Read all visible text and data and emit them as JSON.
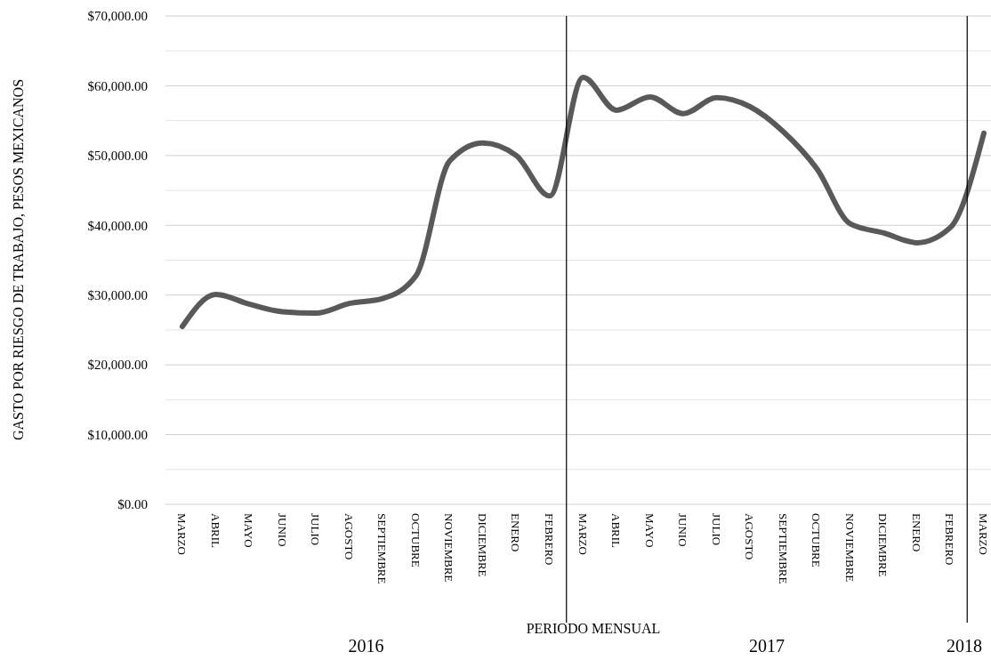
{
  "chart_data": {
    "type": "line",
    "xlabel": "PERIODO MENSUAL",
    "ylabel": "GASTO POR RIESGO DE TRABAJO, PESOS MEXICANOS",
    "categories": [
      "MARZO",
      "ABRIL",
      "MAYO",
      "JUNIO",
      "JULIO",
      "AGOSTO",
      "SEPTIEMBRE",
      "OCTUBRE",
      "NOVIEMBRE",
      "DICIEMBRE",
      "ENERO",
      "FEBRERO",
      "MARZO",
      "ABRIL",
      "MAYO",
      "JUNIO",
      "JULIO",
      "AGOSTO",
      "SEPTIEMBRE",
      "OCTUBRE",
      "NOVIEMBRE",
      "DICIEMBRE",
      "ENERO",
      "FEBRERO",
      "MARZO"
    ],
    "series": [
      {
        "color": "#595959",
        "values": [
          25500,
          30100,
          28700,
          27600,
          27400,
          28800,
          29500,
          32800,
          49200,
          51800,
          50000,
          44200,
          61200,
          56500,
          58400,
          56000,
          58300,
          57000,
          53400,
          48100,
          40200,
          38900,
          37500,
          39700,
          53200
        ]
      }
    ],
    "ylim": [
      0,
      70000
    ],
    "yticks": [
      {
        "value": 0,
        "label": "$0.00"
      },
      {
        "value": 5000,
        "label": null
      },
      {
        "value": 10000,
        "label": "$10,000.00"
      },
      {
        "value": 15000,
        "label": null
      },
      {
        "value": 20000,
        "label": "$20,000.00"
      },
      {
        "value": 25000,
        "label": null
      },
      {
        "value": 30000,
        "label": "$30,000.00"
      },
      {
        "value": 35000,
        "label": null
      },
      {
        "value": 40000,
        "label": "$40,000.00"
      },
      {
        "value": 45000,
        "label": null
      },
      {
        "value": 50000,
        "label": "$50,000.00"
      },
      {
        "value": 55000,
        "label": null
      },
      {
        "value": 60000,
        "label": "$60,000.00"
      },
      {
        "value": 65000,
        "label": null
      },
      {
        "value": 70000,
        "label": "$70,000.00"
      }
    ],
    "grid": "y",
    "line_style": "solid",
    "annotations": [
      "2016",
      "2017",
      "2018"
    ]
  }
}
